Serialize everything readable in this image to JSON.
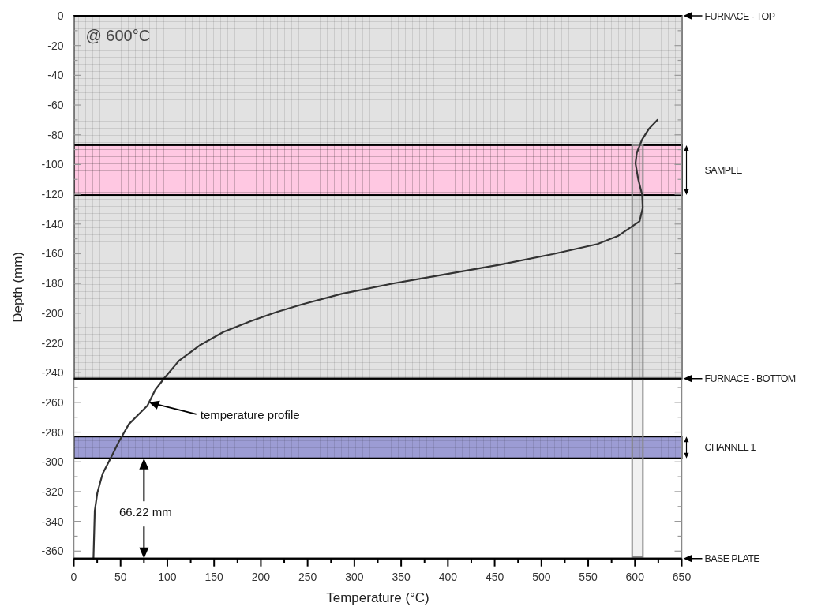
{
  "chart_data": {
    "type": "line",
    "xlabel": "Temperature (°C)",
    "ylabel": "Depth (mm)",
    "xlim": [
      0,
      650
    ],
    "xticks": [
      0,
      {
        "value": 25,
        "label": null
      },
      50,
      {
        "value": 75,
        "label": null
      },
      100,
      {
        "value": 125,
        "label": null
      },
      150,
      {
        "value": 175,
        "label": null
      },
      200,
      {
        "value": 225,
        "label": null
      },
      250,
      {
        "value": 275,
        "label": null
      },
      300,
      {
        "value": 325,
        "label": null
      },
      350,
      {
        "value": 375,
        "label": null
      },
      400,
      {
        "value": 425,
        "label": null
      },
      450,
      {
        "value": 475,
        "label": null
      },
      500,
      {
        "value": 525,
        "label": null
      },
      550,
      {
        "value": 575,
        "label": null
      },
      600,
      {
        "value": 625,
        "label": null
      },
      650
    ],
    "ylim": [
      -365,
      0
    ],
    "yticks": [
      0,
      {
        "value": -10,
        "label": null
      },
      -20,
      {
        "value": -30,
        "label": null
      },
      -40,
      {
        "value": -50,
        "label": null
      },
      -60,
      {
        "value": -70,
        "label": null
      },
      -80,
      {
        "value": -90,
        "label": null
      },
      -100,
      {
        "value": -110,
        "label": null
      },
      -120,
      {
        "value": -130,
        "label": null
      },
      -140,
      {
        "value": -150,
        "label": null
      },
      -160,
      {
        "value": -170,
        "label": null
      },
      -180,
      {
        "value": -190,
        "label": null
      },
      -200,
      {
        "value": -210,
        "label": null
      },
      -220,
      {
        "value": -230,
        "label": null
      },
      -240,
      {
        "value": -250,
        "label": null
      },
      -260,
      {
        "value": -270,
        "label": null
      },
      -280,
      {
        "value": -290,
        "label": null
      },
      -300,
      {
        "value": -310,
        "label": null
      },
      -320,
      {
        "value": -330,
        "label": null
      },
      -340,
      {
        "value": -350,
        "label": null
      },
      -360
    ],
    "series": [
      {
        "color": "#333333",
        "x": [
          21,
          22.4,
          25.2,
          30.8,
          39.3,
          47.7,
          58.9,
          70.2,
          78.7,
          87.1,
          96.9,
          112.4,
          134.9,
          160.2,
          188.4,
          216.5,
          244.6,
          286.9,
          343.2,
          399.5,
          455.7,
          512,
          560,
          582.3,
          604.9,
          608.3,
          607.7,
          603.5,
          600.6,
          602,
          607.6,
          614.7,
          624
        ],
        "values": [
          -365,
          -333,
          -320.7,
          -308,
          -297.6,
          -287,
          -274.6,
          -267.5,
          -262.2,
          -251.6,
          -243.6,
          -232,
          -221.5,
          -212.6,
          -205.5,
          -199.3,
          -194,
          -186.9,
          -179.8,
          -173.6,
          -167.4,
          -160.3,
          -153.5,
          -147.9,
          -138.2,
          -129.3,
          -120.5,
          -109.9,
          -99.2,
          -92.1,
          -83.3,
          -76.2,
          -70
        ]
      }
    ],
    "bands": [
      {
        "axis": "y",
        "from": -244,
        "to": 0,
        "color": "#e2e2e2"
      },
      {
        "axis": "y",
        "from": -120.5,
        "to": -87,
        "label": "SAMPLE",
        "color": "#ffc8e2"
      },
      {
        "axis": "y",
        "from": -297.6,
        "to": -283,
        "label": "CHANNEL 1",
        "color": "#9c9cd4"
      },
      {
        "axis": "x",
        "from": 597,
        "to": 608.5,
        "color": "#888888"
      }
    ],
    "ref_lines": [
      {
        "axis": "y",
        "value": 0,
        "label": "FURNACE - TOP"
      },
      {
        "axis": "y",
        "value": -244,
        "label": "FURNACE - BOTTOM"
      },
      {
        "axis": "y",
        "value": -365,
        "label": "BASE PLATE"
      }
    ],
    "annotations": [
      "@ 600°C",
      {
        "text": "temperature profile",
        "x": 80.4,
        "y": -260
      },
      "66.22 mm"
    ],
    "grid": false,
    "marker": "none",
    "line_style": "solid"
  }
}
